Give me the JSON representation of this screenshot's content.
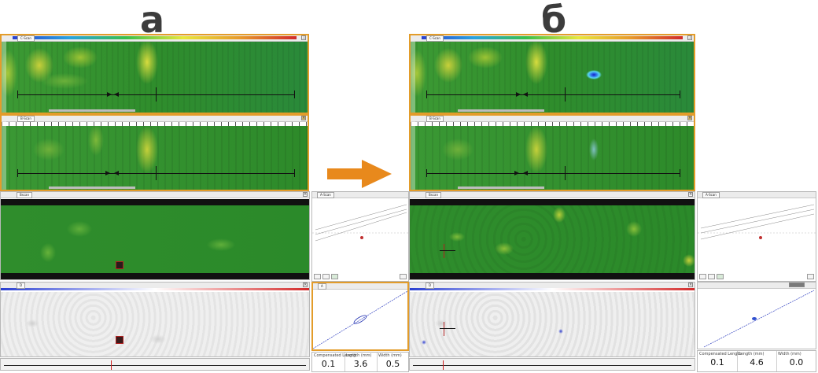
{
  "labels": {
    "left": "а",
    "right": "б"
  },
  "tabs": {
    "cscan_a": "C-Scan",
    "cscan_b": "B-Scan",
    "bscan": "Bscan",
    "dscan": "D",
    "ascan": "A-Scan",
    "ascan2": "A"
  },
  "readouts": {
    "a": [
      {
        "head": "Compensated Length",
        "value": "0.1"
      },
      {
        "head": "Length (mm)",
        "value": "3.6"
      },
      {
        "head": "Width (mm)",
        "value": "0.5"
      }
    ],
    "b": [
      {
        "head": "Compensated Length",
        "value": "0.1"
      },
      {
        "head": "Length (mm)",
        "value": "4.6"
      },
      {
        "head": "Width (mm)",
        "value": "0.0"
      }
    ]
  },
  "colors": {
    "frame": "#e39c2a",
    "arrow": "#e8891c",
    "heat_green": "#2d8a2a",
    "heat_yellow": "#c9d23a"
  },
  "icons": [
    "close-icon",
    "pin-icon",
    "zoom-icon",
    "cursor-icon",
    "arrow-right-icon"
  ]
}
